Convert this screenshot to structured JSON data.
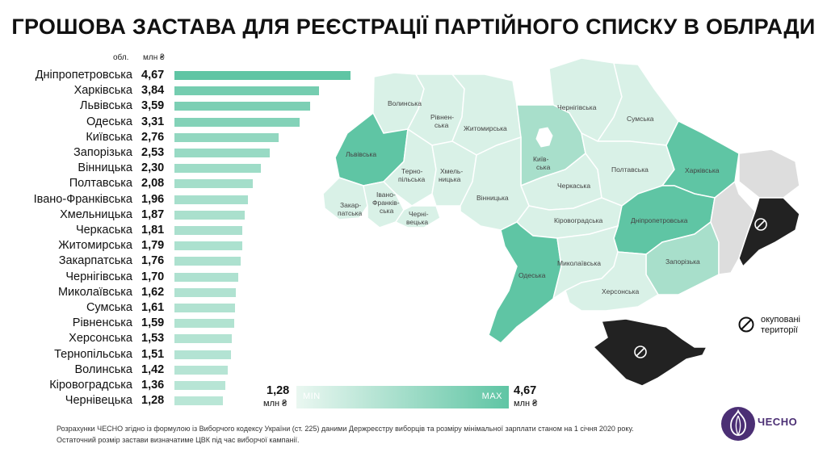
{
  "title": "ГРОШОВА ЗАСТАВА ДЛЯ РЕЄСТРАЦІЇ ПАРТІЙНОГО СПИСКУ В ОБЛРАДИ",
  "header": {
    "region_col": "обл.",
    "value_col": "млн ₴"
  },
  "chart_data": {
    "type": "bar",
    "orientation": "horizontal",
    "title": "ГРОШОВА ЗАСТАВА ДЛЯ РЕЄСТРАЦІЇ ПАРТІЙНОГО СПИСКУ В ОБЛРАДИ",
    "unit": "млн ₴",
    "categories": [
      "Дніпропетровська",
      "Харківська",
      "Львівська",
      "Одеська",
      "Київська",
      "Запорізька",
      "Вінницька",
      "Полтавська",
      "Івано-Франківська",
      "Хмельницька",
      "Черкаська",
      "Житомирська",
      "Закарпатська",
      "Чернігівська",
      "Миколаївська",
      "Сумська",
      "Рівненська",
      "Херсонська",
      "Тернопільська",
      "Волинська",
      "Кіровоградська",
      "Чернівецька"
    ],
    "values": [
      4.67,
      3.84,
      3.59,
      3.31,
      2.76,
      2.53,
      2.3,
      2.08,
      1.96,
      1.87,
      1.81,
      1.79,
      1.76,
      1.7,
      1.62,
      1.61,
      1.59,
      1.53,
      1.51,
      1.42,
      1.36,
      1.28
    ],
    "value_labels": [
      "4,67",
      "3,84",
      "3,59",
      "3,31",
      "2,76",
      "2,53",
      "2,30",
      "2,08",
      "1,96",
      "1,87",
      "1,81",
      "1,79",
      "1,76",
      "1,70",
      "1,62",
      "1,61",
      "1,59",
      "1,53",
      "1,51",
      "1,42",
      "1,36",
      "1,28"
    ],
    "xlim": [
      0,
      4.67
    ],
    "bar_color_scale": [
      "#eaf7f1",
      "#5fc5a4"
    ]
  },
  "map": {
    "labels": {
      "volynska": "Волинська",
      "rivnenska_1": "Рівнен-",
      "rivnenska_2": "ська",
      "zhytomyrska": "Житомирська",
      "chernihivska": "Чернігівська",
      "sumska": "Сумська",
      "lvivska": "Львівська",
      "ternopilska_1": "Терно-",
      "ternopilska_2": "пільська",
      "khmelnytska_1": "Хмель-",
      "khmelnytska_2": "ницька",
      "kyivska_1": "Київ-",
      "kyivska_2": "ська",
      "cherkaska": "Черкаська",
      "poltavska": "Полтавська",
      "kharkivska": "Харківська",
      "zakarpatska_1": "Закар-",
      "zakarpatska_2": "патська",
      "ivanofrankivska_1": "Івано-",
      "ivanofrankivska_2": "Франків-",
      "ivanofrankivska_3": "ська",
      "chernivetska_1": "Черні-",
      "chernivetska_2": "вецька",
      "vinnytska": "Вінницька",
      "kirovohradska": "Кіровоградська",
      "dnipropetrovska": "Дніпропетровська",
      "mykolaivska": "Миколаївська",
      "odeska": "Одеська",
      "zaporizka": "Запорізька",
      "khersonska": "Херсонська"
    },
    "colors": {
      "dark": "#5fc5a4",
      "mid": "#a8dfcb",
      "light": "#d9f1e7",
      "occupied_gray": "#dddddd",
      "occupied_black": "#222222"
    }
  },
  "legend": {
    "occupied_1": "окуповані",
    "occupied_2": "території",
    "icon": "no-entry-icon"
  },
  "scale": {
    "min_value": "1,28",
    "max_value": "4,67",
    "unit": "млн ₴",
    "min_label": "MIN",
    "max_label": "MAX"
  },
  "footnote": {
    "line1": "Розрахунки ЧЕСНО згідно із формулою із Виборчого кодексу України (ст. 225) даними Держреєстру виборців та розміру мінімальної зарплати станом на 1 січня 2020 року.",
    "line2": "Остаточний розмір застави визначатиме ЦВК під час виборчої кампанії."
  },
  "logo": {
    "text": "ЧЕСНО",
    "icon": "garlic-logo-icon"
  }
}
